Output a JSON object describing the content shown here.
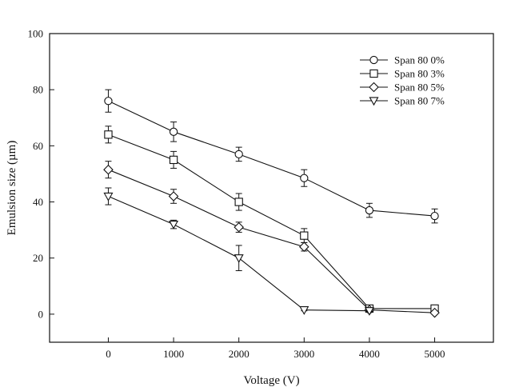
{
  "chart_data": {
    "type": "line",
    "title": "",
    "xlabel": "Voltage (V)",
    "ylabel": "Emulsion size (µm)",
    "x": [
      0,
      1000,
      2000,
      3000,
      4000,
      5000
    ],
    "x_ticks": [
      "0",
      "1000",
      "2000",
      "3000",
      "4000",
      "5000"
    ],
    "xlim": [
      -900,
      5900
    ],
    "ylim": [
      -10,
      100
    ],
    "y_ticks": [
      "0",
      "20",
      "40",
      "60",
      "80",
      "100"
    ],
    "y_tick_values": [
      0,
      20,
      40,
      60,
      80,
      100
    ],
    "grid": false,
    "legend_position": "top-right",
    "series": [
      {
        "name": "Span 80 0%",
        "marker": "circle",
        "values": [
          76,
          65,
          57,
          48.5,
          37,
          35
        ],
        "errors": [
          4,
          3.5,
          2.5,
          3,
          2.5,
          2.5
        ]
      },
      {
        "name": "Span 80 3%",
        "marker": "square",
        "values": [
          64,
          55,
          40,
          28,
          2,
          2
        ],
        "errors": [
          3,
          3,
          3,
          2.5,
          0.5,
          0.5
        ]
      },
      {
        "name": "Span 80 5%",
        "marker": "diamond",
        "values": [
          51.5,
          42,
          31,
          24,
          1.5,
          0.5
        ],
        "errors": [
          3,
          2.5,
          1.8,
          1.5,
          0.5,
          0.3
        ]
      },
      {
        "name": "Span 80 7%",
        "marker": "triangle-down",
        "values": [
          42,
          32,
          20,
          1.5,
          1.2,
          null
        ],
        "errors": [
          3,
          1.5,
          4.5,
          0.3,
          0.3,
          null
        ]
      }
    ]
  }
}
